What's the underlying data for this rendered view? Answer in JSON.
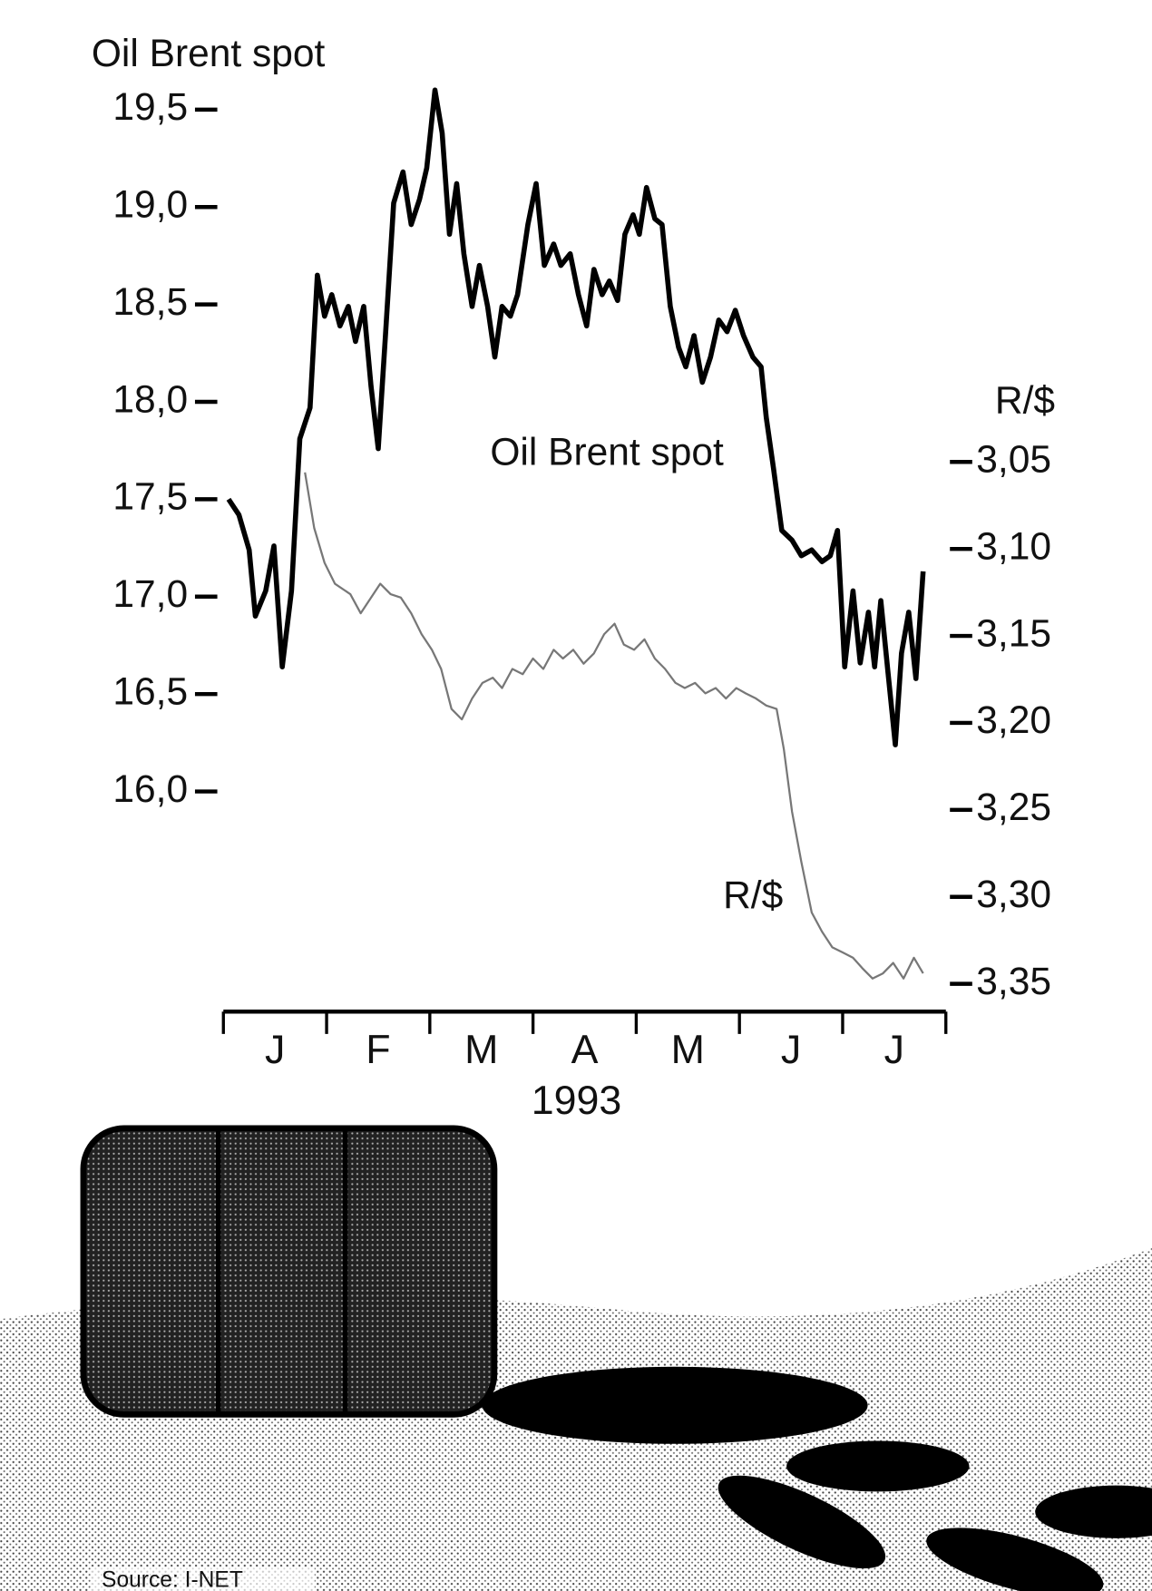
{
  "chart_data": {
    "type": "line",
    "title": "Oil Brent spot",
    "y2_title": "R/$",
    "x_label": "1993",
    "source": "Source: I-NET",
    "annotations": [
      {
        "text": "Oil Brent spot"
      },
      {
        "text": "R/$"
      }
    ],
    "categories": [
      "J",
      "F",
      "M",
      "A",
      "M",
      "J",
      "J"
    ],
    "xlim": [
      0,
      7
    ],
    "xticks": [
      0,
      1,
      2,
      3,
      4,
      5,
      6,
      7
    ],
    "ylim": [
      14.87,
      19.62
    ],
    "yticks": [
      {
        "value": 16.0,
        "label": "16,0"
      },
      {
        "value": 16.5,
        "label": "16,5"
      },
      {
        "value": 17.0,
        "label": "17,0"
      },
      {
        "value": 17.5,
        "label": "17,5"
      },
      {
        "value": 18.0,
        "label": "18,0"
      },
      {
        "value": 18.5,
        "label": "18,5"
      },
      {
        "value": 19.0,
        "label": "19,0"
      },
      {
        "value": 19.5,
        "label": "19,5"
      }
    ],
    "y2lim": [
      3.366,
      2.834
    ],
    "y2ticks": [
      {
        "value": 3.05,
        "label": "3,05"
      },
      {
        "value": 3.1,
        "label": "3,10"
      },
      {
        "value": 3.15,
        "label": "3,15"
      },
      {
        "value": 3.2,
        "label": "3,20"
      },
      {
        "value": 3.25,
        "label": "3,25"
      },
      {
        "value": 3.3,
        "label": "3,30"
      },
      {
        "value": 3.35,
        "label": "3,35"
      }
    ],
    "series": [
      {
        "name": "Oil Brent spot",
        "color": "#000000",
        "width": 5,
        "x": [
          0.05,
          0.15,
          0.25,
          0.31,
          0.41,
          0.49,
          0.57,
          0.66,
          0.74,
          0.84,
          0.91,
          0.98,
          1.05,
          1.13,
          1.21,
          1.28,
          1.36,
          1.43,
          1.5,
          1.57,
          1.65,
          1.74,
          1.82,
          1.9,
          1.97,
          2.05,
          2.12,
          2.19,
          2.26,
          2.33,
          2.41,
          2.48,
          2.56,
          2.63,
          2.7,
          2.78,
          2.85,
          2.95,
          3.03,
          3.11,
          3.2,
          3.27,
          3.36,
          3.44,
          3.52,
          3.59,
          3.67,
          3.74,
          3.82,
          3.89,
          3.97,
          4.03,
          4.1,
          4.18,
          4.25,
          4.33,
          4.41,
          4.48,
          4.56,
          4.64,
          4.72,
          4.8,
          4.88,
          4.96,
          5.04,
          5.13,
          5.21,
          5.26,
          5.33,
          5.41,
          5.51,
          5.6,
          5.7,
          5.8,
          5.88,
          5.95,
          6.02,
          6.1,
          6.17,
          6.25,
          6.31,
          6.37,
          6.44,
          6.51,
          6.57,
          6.64,
          6.71,
          6.78
        ],
        "values": [
          17.5,
          17.42,
          17.24,
          16.9,
          17.03,
          17.26,
          16.64,
          17.03,
          17.81,
          17.97,
          18.65,
          18.44,
          18.55,
          18.39,
          18.49,
          18.31,
          18.49,
          18.08,
          17.76,
          18.34,
          19.02,
          19.18,
          18.91,
          19.04,
          19.2,
          19.6,
          19.38,
          18.86,
          19.12,
          18.76,
          18.49,
          18.7,
          18.49,
          18.23,
          18.49,
          18.44,
          18.55,
          18.91,
          19.12,
          18.7,
          18.81,
          18.7,
          18.76,
          18.55,
          18.39,
          18.68,
          18.55,
          18.62,
          18.52,
          18.86,
          18.96,
          18.86,
          19.1,
          18.94,
          18.91,
          18.49,
          18.28,
          18.18,
          18.34,
          18.1,
          18.23,
          18.42,
          18.36,
          18.47,
          18.34,
          18.23,
          18.18,
          17.92,
          17.66,
          17.34,
          17.29,
          17.21,
          17.24,
          17.18,
          17.21,
          17.34,
          16.64,
          17.03,
          16.66,
          16.92,
          16.64,
          16.98,
          16.61,
          16.24,
          16.71,
          16.92,
          16.58,
          17.13
        ]
      },
      {
        "name": "R/$",
        "color": "#777777",
        "width": 2,
        "axis": "y2",
        "x": [
          0.79,
          0.88,
          0.98,
          1.08,
          1.23,
          1.33,
          1.43,
          1.52,
          1.62,
          1.72,
          1.82,
          1.92,
          2.02,
          2.11,
          2.21,
          2.31,
          2.41,
          2.51,
          2.61,
          2.7,
          2.8,
          2.9,
          3.0,
          3.1,
          3.2,
          3.29,
          3.39,
          3.49,
          3.59,
          3.69,
          3.79,
          3.88,
          3.98,
          4.08,
          4.18,
          4.28,
          4.38,
          4.47,
          4.57,
          4.67,
          4.77,
          4.87,
          4.97,
          5.06,
          5.16,
          5.26,
          5.36,
          5.43,
          5.51,
          5.6,
          5.7,
          5.8,
          5.9,
          6.0,
          6.1,
          6.19,
          6.29,
          6.39,
          6.49,
          6.59,
          6.69,
          6.78
        ],
        "values": [
          3.056,
          3.088,
          3.108,
          3.12,
          3.126,
          3.137,
          3.128,
          3.12,
          3.126,
          3.128,
          3.137,
          3.149,
          3.158,
          3.169,
          3.192,
          3.198,
          3.186,
          3.177,
          3.174,
          3.18,
          3.169,
          3.172,
          3.163,
          3.169,
          3.158,
          3.163,
          3.158,
          3.166,
          3.16,
          3.149,
          3.143,
          3.155,
          3.158,
          3.152,
          3.163,
          3.169,
          3.177,
          3.18,
          3.177,
          3.183,
          3.18,
          3.186,
          3.18,
          3.183,
          3.186,
          3.19,
          3.192,
          3.215,
          3.251,
          3.28,
          3.309,
          3.32,
          3.329,
          3.332,
          3.335,
          3.341,
          3.347,
          3.344,
          3.338,
          3.347,
          3.335,
          3.344
        ]
      }
    ]
  }
}
